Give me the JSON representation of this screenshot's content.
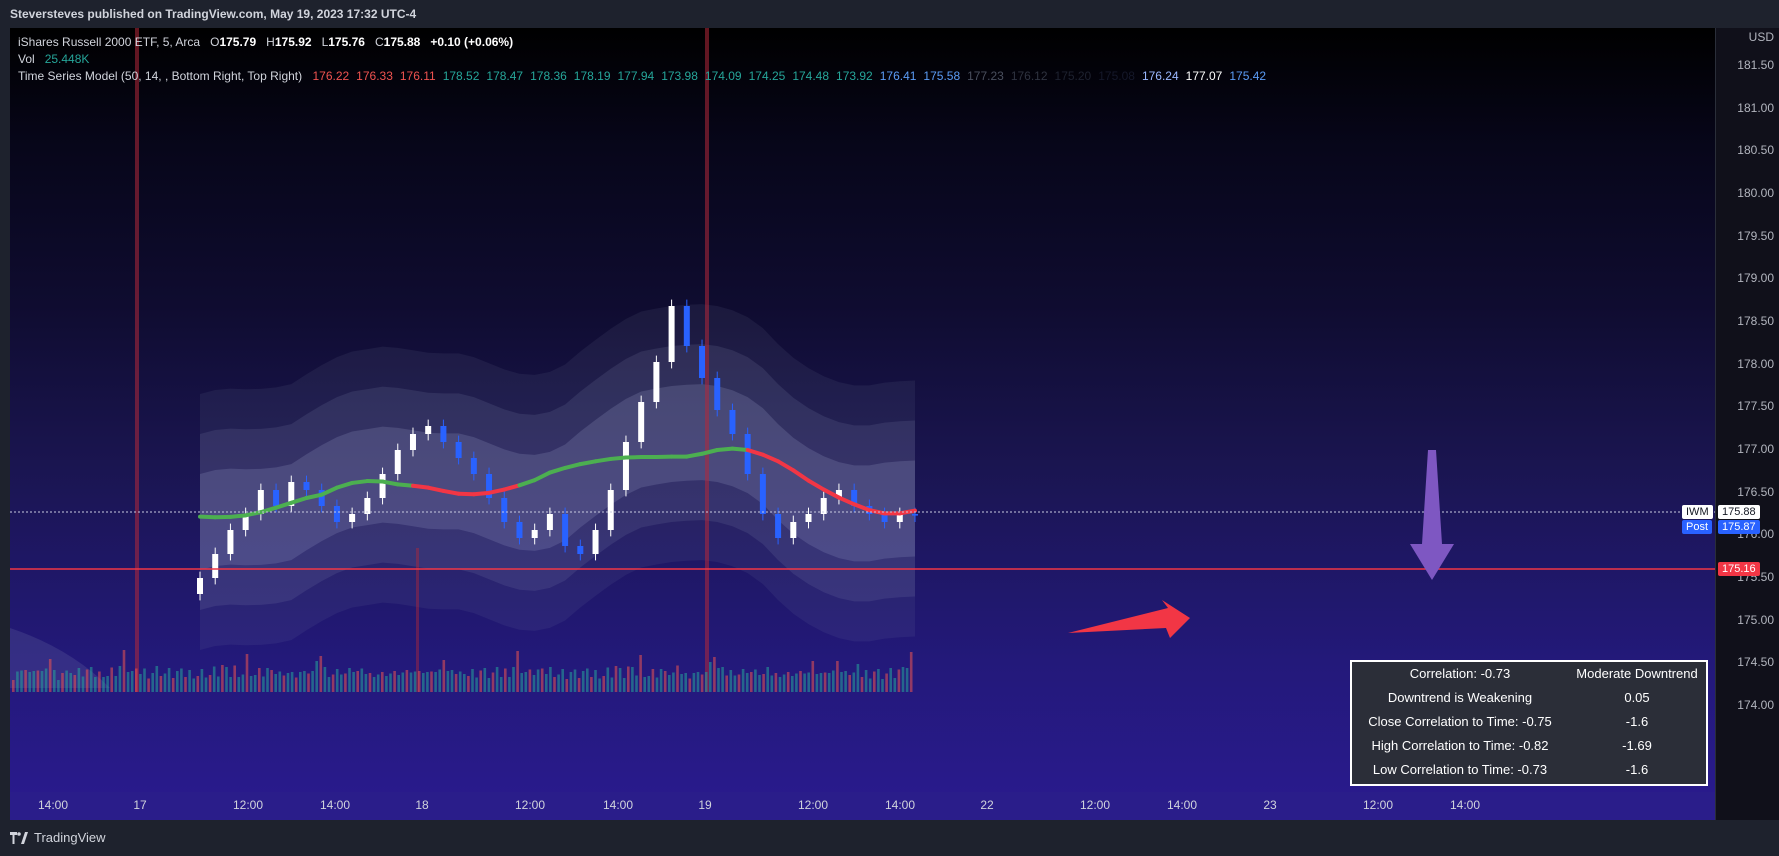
{
  "header": {
    "published": "Steversteves published on TradingView.com, May 19, 2023 17:32 UTC-4"
  },
  "footer": {
    "brand": "TradingView"
  },
  "legend": {
    "symbol": "iShares Russell 2000 ETF, 5, Arca",
    "o_label": "O",
    "o": "175.79",
    "h_label": "H",
    "h": "175.92",
    "l_label": "L",
    "l": "175.76",
    "c_label": "C",
    "c": "175.88",
    "change": "+0.10 (+0.06%)",
    "vol_label": "Vol",
    "vol": "25.448K",
    "indicator": "Time Series Model (50, 14, , Bottom Right, Top Right)",
    "indicator_values": [
      {
        "v": "176.22",
        "color": "#ef5350"
      },
      {
        "v": "176.33",
        "color": "#ef5350"
      },
      {
        "v": "176.11",
        "color": "#ef5350"
      },
      {
        "v": "178.52",
        "color": "#26a69a"
      },
      {
        "v": "178.47",
        "color": "#26a69a"
      },
      {
        "v": "178.36",
        "color": "#26a69a"
      },
      {
        "v": "178.19",
        "color": "#26a69a"
      },
      {
        "v": "177.94",
        "color": "#26a69a"
      },
      {
        "v": "173.98",
        "color": "#26a69a"
      },
      {
        "v": "174.09",
        "color": "#26a69a"
      },
      {
        "v": "174.25",
        "color": "#26a69a"
      },
      {
        "v": "174.48",
        "color": "#26a69a"
      },
      {
        "v": "173.92",
        "color": "#26a69a"
      },
      {
        "v": "176.41",
        "color": "#5b9cf6"
      },
      {
        "v": "175.58",
        "color": "#5b9cf6"
      },
      {
        "v": "177.23",
        "color": "#4a4f5e"
      },
      {
        "v": "176.12",
        "color": "#2f3340"
      },
      {
        "v": "175.20",
        "color": "#1e2230"
      },
      {
        "v": "175.08",
        "color": "#15182a"
      },
      {
        "v": "176.24",
        "color": "#9bb8ff"
      },
      {
        "v": "177.07",
        "color": "#ffffff"
      },
      {
        "v": "175.42",
        "color": "#5b9cf6"
      }
    ]
  },
  "price_scale": {
    "currency": "USD",
    "ticks": [
      "181.50",
      "181.00",
      "180.50",
      "180.00",
      "179.50",
      "179.00",
      "178.50",
      "178.00",
      "177.50",
      "177.00",
      "176.50",
      "176.00",
      "175.50",
      "175.00",
      "174.50",
      "174.00"
    ],
    "current_label": "IWM",
    "current_value": "175.88",
    "post_label": "Post",
    "post_value": "175.87",
    "line_value": "175.16"
  },
  "time_scale": {
    "ticks": [
      "14:00",
      "17",
      "12:00",
      "14:00",
      "18",
      "12:00",
      "14:00",
      "19",
      "12:00",
      "14:00",
      "22",
      "12:00",
      "14:00",
      "23",
      "12:00",
      "14:00"
    ]
  },
  "stats_table": {
    "rows": [
      [
        "Correlation: -0.73",
        "Moderate Downtrend"
      ],
      [
        "Downtrend is Weakening",
        "0.05"
      ],
      [
        "Close Correlation to Time: -0.75",
        "-1.6"
      ],
      [
        "High Correlation to Time: -0.82",
        "-1.69"
      ],
      [
        "Low Correlation to Time: -0.73",
        "-1.6"
      ]
    ]
  },
  "colors": {
    "up": "#ffffff",
    "down": "#2962ff",
    "bull_line": "#4caf50",
    "bear_line": "#f23645",
    "level_line": "#f23645",
    "annotation_arrow_red": "#f23645",
    "annotation_arrow_purple": "#7e57c2"
  },
  "chart_data": {
    "type": "candlestick",
    "symbol": "IWM",
    "timeframe": "5",
    "ylim": [
      173.7,
      181.8
    ],
    "horizontal_levels": [
      175.88,
      175.16
    ],
    "close_series": [
      175.1,
      175.4,
      175.7,
      175.9,
      176.2,
      176.0,
      176.3,
      176.2,
      176.0,
      175.8,
      175.9,
      176.1,
      176.4,
      176.7,
      176.9,
      177.0,
      176.8,
      176.6,
      176.4,
      176.1,
      175.8,
      175.6,
      175.7,
      175.9,
      175.5,
      175.4,
      175.7,
      176.2,
      176.8,
      177.3,
      177.8,
      178.5,
      178.0,
      177.6,
      177.2,
      176.9,
      176.4,
      175.9,
      175.6,
      175.8,
      175.9,
      176.1,
      176.2,
      176.0,
      175.9,
      175.8,
      175.9,
      175.88
    ],
    "x_labels_index_note": "",
    "volume_relative": [
      0.2,
      0.35,
      0.25,
      0.5,
      0.3,
      0.2,
      0.45,
      0.3,
      0.25,
      0.8,
      0.3,
      0.2,
      0.3,
      0.25,
      0.4,
      0.2,
      0.3,
      0.25,
      0.35,
      0.3,
      0.2,
      0.25,
      0.3,
      0.2,
      0.35,
      0.3,
      0.5,
      0.9,
      0.4,
      0.3,
      0.25,
      0.3,
      0.35,
      0.25,
      0.3,
      0.4,
      0.3,
      0.25,
      0.3,
      0.2,
      0.3,
      0.25,
      0.2,
      0.3,
      0.25,
      0.2,
      0.3,
      0.25
    ]
  }
}
